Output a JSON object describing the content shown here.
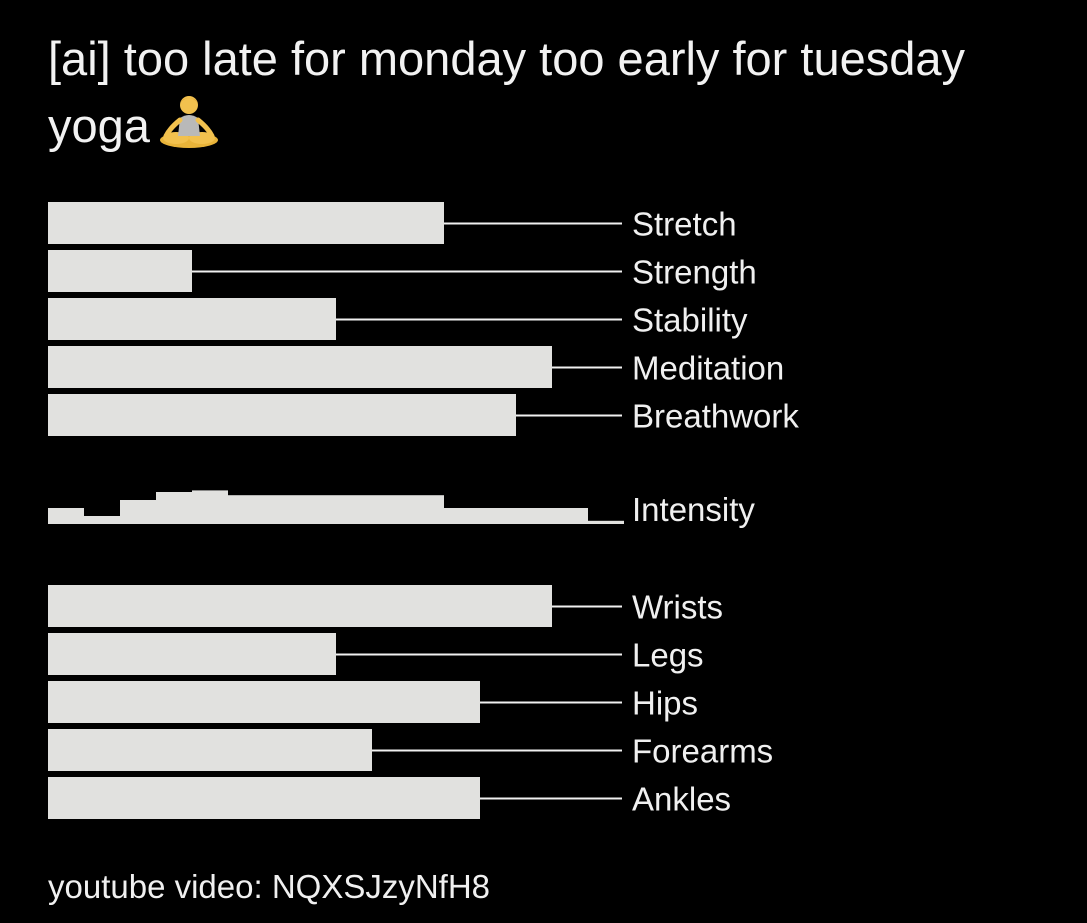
{
  "title": "[ai] too late for monday too early for tuesday yoga",
  "title_icon": "person-in-lotus-position-icon",
  "footer": "youtube video: NQXSJzyNfH8",
  "colors": {
    "background": "#000000",
    "bar": "#e1e1df",
    "text": "#f0f0f0"
  },
  "chart_data": [
    {
      "type": "bar",
      "orientation": "horizontal",
      "categories": [
        "Stretch",
        "Strength",
        "Stability",
        "Meditation",
        "Breathwork"
      ],
      "values": [
        11,
        4,
        8,
        14,
        13
      ],
      "xlim": [
        0,
        16
      ]
    },
    {
      "type": "area",
      "step": true,
      "label": "Intensity",
      "values": [
        1,
        0.5,
        1.5,
        2,
        2.1,
        1.8,
        1.8,
        1.8,
        1.8,
        1.8,
        1.8,
        1,
        1,
        1,
        1,
        0.2
      ]
    },
    {
      "type": "bar",
      "orientation": "horizontal",
      "categories": [
        "Wrists",
        "Legs",
        "Hips",
        "Forearms",
        "Ankles"
      ],
      "values": [
        14,
        8,
        12,
        9,
        12
      ],
      "xlim": [
        0,
        16
      ]
    }
  ]
}
